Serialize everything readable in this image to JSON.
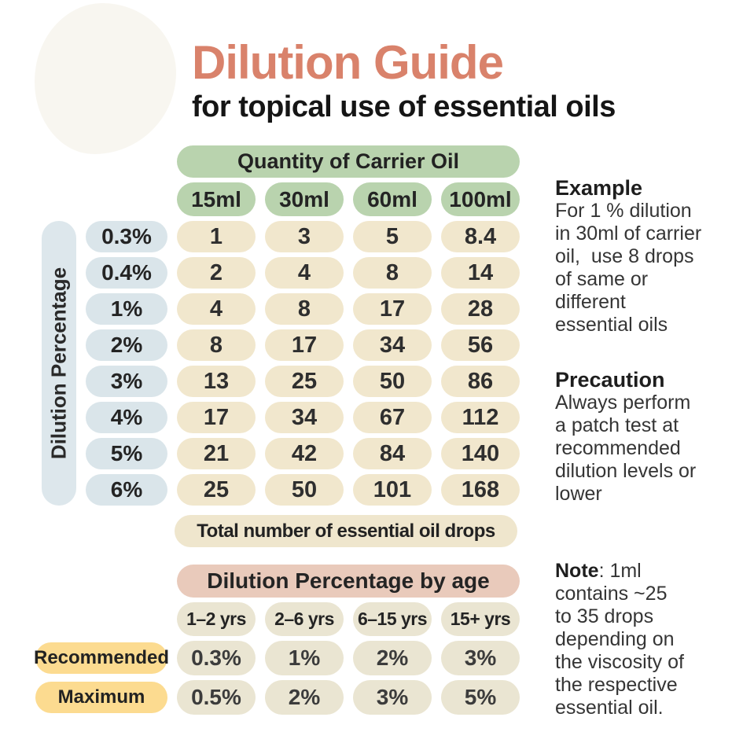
{
  "title": "Dilution Guide",
  "subtitle": "for topical use of essential oils",
  "main_table": {
    "header": "Quantity of Carrier Oil",
    "row_axis_label": "Dilution Percentage",
    "column_headers": [
      "15ml",
      "30ml",
      "60ml",
      "100ml"
    ],
    "rows": [
      {
        "label": "0.3%",
        "values": [
          "1",
          "3",
          "5",
          "8.4"
        ]
      },
      {
        "label": "0.4%",
        "values": [
          "2",
          "4",
          "8",
          "14"
        ]
      },
      {
        "label": "1%",
        "values": [
          "4",
          "8",
          "17",
          "28"
        ]
      },
      {
        "label": "2%",
        "values": [
          "8",
          "17",
          "34",
          "56"
        ]
      },
      {
        "label": "3%",
        "values": [
          "13",
          "25",
          "50",
          "86"
        ]
      },
      {
        "label": "4%",
        "values": [
          "17",
          "34",
          "67",
          "112"
        ]
      },
      {
        "label": "5%",
        "values": [
          "21",
          "42",
          "84",
          "140"
        ]
      },
      {
        "label": "6%",
        "values": [
          "25",
          "50",
          "101",
          "168"
        ]
      }
    ],
    "footer": "Total number of essential oil drops"
  },
  "age_table": {
    "header": "Dilution Percentage by age",
    "column_headers": [
      "1–2 yrs",
      "2–6 yrs",
      "6–15 yrs",
      "15+ yrs"
    ],
    "rows": [
      {
        "label": "Recommended",
        "values": [
          "0.3%",
          "1%",
          "2%",
          "3%"
        ]
      },
      {
        "label": "Maximum",
        "values": [
          "0.5%",
          "2%",
          "3%",
          "5%"
        ]
      }
    ]
  },
  "notes": {
    "example_heading": "Example",
    "example_body": "For 1 % dilution\nin 30ml of carrier\noil,  use 8 drops\nof same or\ndifferent\nessential oils",
    "precaution_heading": "Precaution",
    "precaution_body": "Always perform\na patch test at\nrecommended\ndilution levels or\nlower",
    "note_heading": "Note",
    "note_body": ": 1ml\ncontains ~25\nto 35 drops\ndepending on\nthe viscosity of\nthe respective\nessential oil."
  },
  "colors": {
    "title_accent": "#d9826b",
    "green_pill": "#b9d3ae",
    "blue_pill": "#dae5ea",
    "tan_pill": "#f1e7cd",
    "tan_age_pill": "#eae5d2",
    "pink_pill": "#e9cabb",
    "yellow_pill": "#fcdb90"
  },
  "chart_data": [
    {
      "type": "table",
      "title": "Quantity of Carrier Oil",
      "subtitle": "Total number of essential oil drops",
      "row_axis_label": "Dilution Percentage",
      "columns": [
        "15ml",
        "30ml",
        "60ml",
        "100ml"
      ],
      "rows": [
        {
          "dilution": "0.3%",
          "drops": [
            1,
            3,
            5,
            8.4
          ]
        },
        {
          "dilution": "0.4%",
          "drops": [
            2,
            4,
            8,
            14
          ]
        },
        {
          "dilution": "1%",
          "drops": [
            4,
            8,
            17,
            28
          ]
        },
        {
          "dilution": "2%",
          "drops": [
            8,
            17,
            34,
            56
          ]
        },
        {
          "dilution": "3%",
          "drops": [
            13,
            25,
            50,
            86
          ]
        },
        {
          "dilution": "4%",
          "drops": [
            17,
            34,
            67,
            112
          ]
        },
        {
          "dilution": "5%",
          "drops": [
            21,
            42,
            84,
            140
          ]
        },
        {
          "dilution": "6%",
          "drops": [
            25,
            50,
            101,
            168
          ]
        }
      ]
    },
    {
      "type": "table",
      "title": "Dilution Percentage by age",
      "columns": [
        "1–2 yrs",
        "2–6 yrs",
        "6–15 yrs",
        "15+ yrs"
      ],
      "rows": [
        {
          "level": "Recommended",
          "percent": [
            "0.3%",
            "1%",
            "2%",
            "3%"
          ]
        },
        {
          "level": "Maximum",
          "percent": [
            "0.5%",
            "2%",
            "3%",
            "5%"
          ]
        }
      ]
    }
  ]
}
